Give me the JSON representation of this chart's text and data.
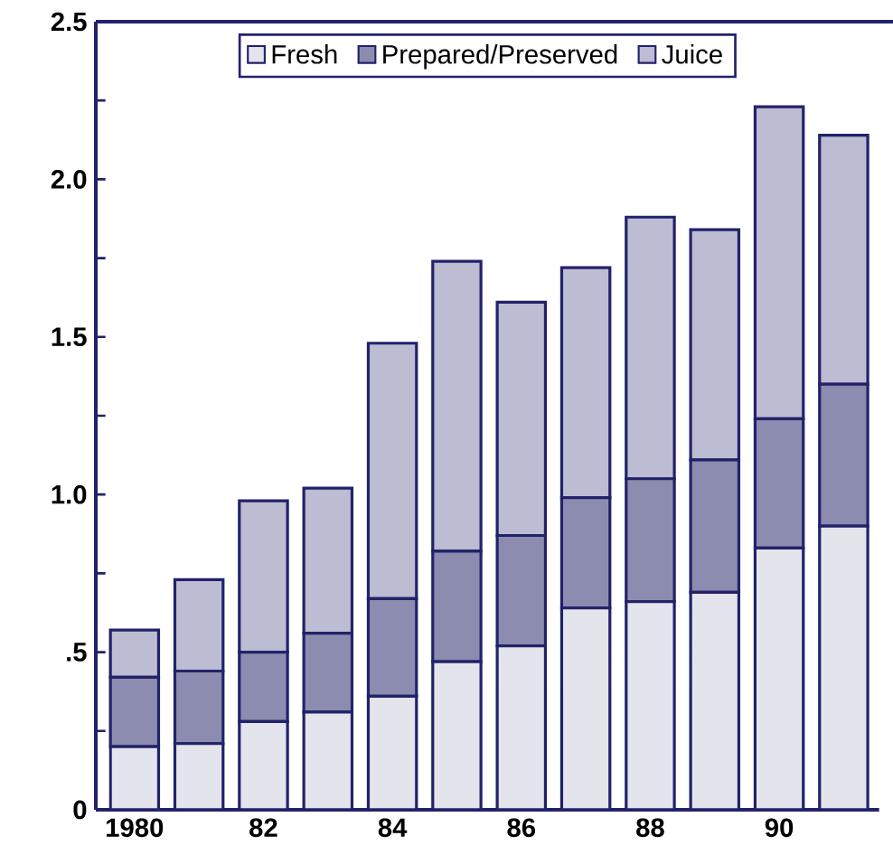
{
  "chart_data": {
    "type": "bar",
    "stacked": true,
    "categories": [
      "1980",
      null,
      "82",
      null,
      "84",
      null,
      "86",
      null,
      "88",
      null,
      "90",
      null
    ],
    "series": [
      {
        "name": "Fresh",
        "color": "#e4e4ec",
        "values": [
          0.2,
          0.21,
          0.28,
          0.31,
          0.36,
          0.47,
          0.52,
          0.64,
          0.66,
          0.69,
          0.83,
          0.9
        ]
      },
      {
        "name": "Prepared/Preserved",
        "color": "#8c8cb0",
        "values": [
          0.22,
          0.23,
          0.22,
          0.25,
          0.31,
          0.35,
          0.35,
          0.35,
          0.39,
          0.42,
          0.41,
          0.45
        ]
      },
      {
        "name": "Juice",
        "color": "#bcbcd2",
        "values": [
          0.15,
          0.29,
          0.48,
          0.46,
          0.81,
          0.92,
          0.74,
          0.73,
          0.83,
          0.73,
          0.99,
          0.79
        ]
      }
    ],
    "ylim": [
      0,
      2.5
    ],
    "yticks": [
      0,
      {
        "value": 0.25,
        "label": null
      },
      {
        "value": 0.5,
        "label": ".5"
      },
      {
        "value": 0.75,
        "label": null
      },
      {
        "value": 1.0,
        "label": "1.0"
      },
      {
        "value": 1.25,
        "label": null
      },
      {
        "value": 1.5,
        "label": "1.5"
      },
      {
        "value": 1.75,
        "label": null
      },
      {
        "value": 2.0,
        "label": "2.0"
      },
      {
        "value": 2.25,
        "label": null
      },
      {
        "value": 2.5,
        "label": "2.5"
      }
    ],
    "legend": "top"
  }
}
